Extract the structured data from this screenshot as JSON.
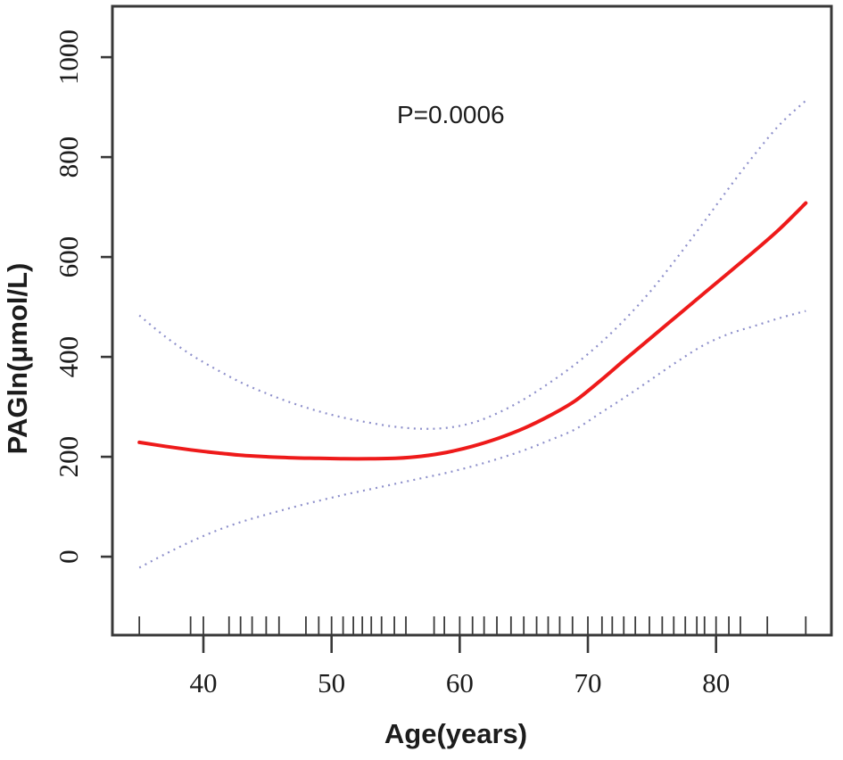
{
  "chart_data": {
    "type": "line",
    "title": "",
    "xlabel": "Age(years)",
    "ylabel": "PAGln(μmol/L)",
    "annotation": {
      "text": "P=0.0006",
      "x": 59.3,
      "y": 886
    },
    "xlim": [
      32.9,
      89.0
    ],
    "ylim": [
      -157,
      1102
    ],
    "x_ticks": [
      40,
      50,
      60,
      70,
      80
    ],
    "y_ticks": [
      0,
      200,
      400,
      600,
      800,
      1000
    ],
    "grid": false,
    "legend": null,
    "frame_color": "#383838",
    "text_color": "#1c1c1c",
    "x": [
      35,
      37,
      39,
      41,
      43,
      45,
      47,
      49,
      51,
      53,
      55,
      57,
      59,
      61,
      63,
      65,
      67,
      69,
      71,
      73,
      75,
      77,
      79,
      81,
      83,
      85,
      87
    ],
    "series": [
      {
        "name": "fitted-curve",
        "style": "solid",
        "color": "#ee1a1a",
        "width": 4,
        "values": [
          229,
          221,
          214,
          208,
          203,
          200,
          198,
          197,
          196,
          196,
          197,
          201,
          209,
          221,
          237,
          257,
          282,
          312,
          353,
          397,
          440,
          483,
          526,
          569,
          612,
          657,
          708
        ]
      },
      {
        "name": "upper-confidence-band",
        "style": "dotted",
        "color": "#8e90cb",
        "width": 2.2,
        "values": [
          483,
          441,
          405,
          375,
          348,
          326,
          307,
          291,
          278,
          268,
          260,
          256,
          258,
          268,
          288,
          315,
          348,
          385,
          428,
          478,
          535,
          600,
          668,
          738,
          805,
          866,
          913
        ]
      },
      {
        "name": "lower-confidence-band",
        "style": "dotted",
        "color": "#8e90cb",
        "width": 2.2,
        "values": [
          -22,
          5,
          30,
          52,
          70,
          85,
          99,
          112,
          124,
          135,
          146,
          157,
          168,
          181,
          196,
          213,
          233,
          255,
          288,
          321,
          356,
          391,
          423,
          446,
          462,
          478,
          492
        ]
      }
    ],
    "rug": {
      "color": "#3a3a3a",
      "ages": [
        35,
        39,
        40,
        42,
        42.9,
        43.8,
        44.9,
        45.9,
        48,
        49,
        50,
        50.9,
        51.7,
        52.4,
        53.1,
        53.9,
        54.9,
        55.8,
        58,
        58.8,
        60,
        61,
        61.9,
        62.9,
        64,
        65,
        66,
        66.9,
        67.8,
        68.8,
        70,
        71.1,
        71.9,
        72.8,
        73.7,
        74.8,
        75.8,
        76.7,
        77.6,
        78.5,
        79.1,
        80,
        81,
        81.9,
        84,
        87
      ]
    }
  }
}
